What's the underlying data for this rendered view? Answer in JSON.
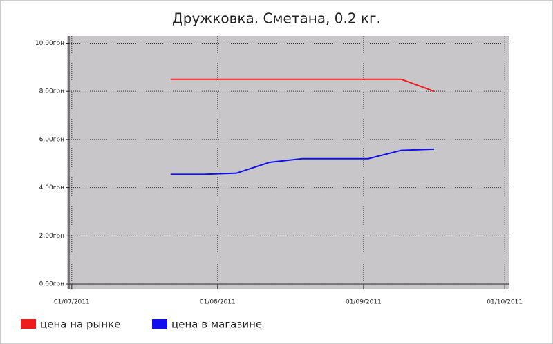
{
  "chart_data": {
    "type": "line",
    "title": "Дружковка. Сметана, 0.2 кг.",
    "x": [
      "22/07/2011",
      "29/07/2011",
      "05/08/2011",
      "12/08/2011",
      "19/08/2011",
      "26/08/2011",
      "02/09/2011",
      "09/09/2011",
      "16/09/2011"
    ],
    "series": [
      {
        "name": "цена на рынке",
        "color": "#ee1c1c",
        "values": [
          8.5,
          8.5,
          8.5,
          8.5,
          8.5,
          8.5,
          8.5,
          8.5,
          8.0
        ]
      },
      {
        "name": "цена в магазине",
        "color": "#1010ee",
        "values": [
          4.55,
          4.55,
          4.6,
          5.05,
          5.2,
          5.2,
          5.2,
          5.55,
          5.6
        ]
      }
    ],
    "xlim": [
      "30/06/2011",
      "02/10/2011"
    ],
    "xticks": [
      "01/07/2011",
      "01/08/2011",
      "01/09/2011",
      "01/10/2011"
    ],
    "ylim": [
      -0.2,
      10.3
    ],
    "yticks": [
      {
        "value": 0,
        "label": "0.00грн"
      },
      {
        "value": 2,
        "label": "2.00грн"
      },
      {
        "value": 4,
        "label": "4.00грн"
      },
      {
        "value": 6,
        "label": "6.00грн"
      },
      {
        "value": 8,
        "label": "8.00грн"
      },
      {
        "value": 10,
        "label": "10.00грн"
      }
    ],
    "grid": true,
    "legend": "bottom"
  }
}
